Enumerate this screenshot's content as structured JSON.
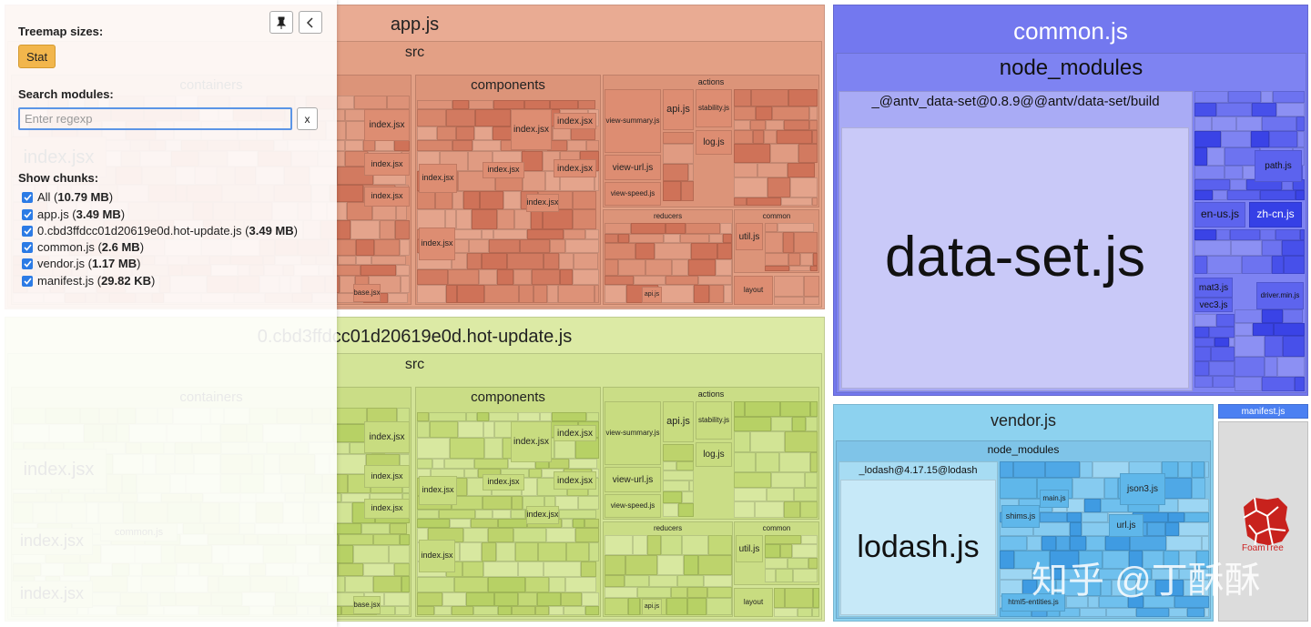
{
  "sidebar": {
    "treemap_sizes": "Treemap sizes:",
    "stat": "Stat",
    "search_modules": "Search modules:",
    "search_placeholder": "Enter regexp",
    "clear": "x",
    "show_chunks": "Show chunks:",
    "chunks": [
      {
        "parts": [
          "All (",
          "10.79 MB",
          ")"
        ]
      },
      {
        "parts": [
          "app.js (",
          "3.49 MB",
          ")"
        ]
      },
      {
        "parts": [
          "0.cbd3ffdcc01d20619e0d.hot-update.js (",
          "3.49 MB",
          ")"
        ]
      },
      {
        "parts": [
          "common.js (",
          "2.6 MB",
          ")"
        ]
      },
      {
        "parts": [
          "vendor.js (",
          "1.17 MB",
          ")"
        ]
      },
      {
        "parts": [
          "manifest.js (",
          "29.82 KB",
          ")"
        ]
      }
    ]
  },
  "treemap": {
    "chunks": [
      {
        "label": "app.js",
        "cells": [
          "src",
          "components",
          "actions",
          "reducers",
          "common",
          "layout",
          "containers",
          "index.jsx",
          "index.jsx",
          "view-summary.js",
          "api.js",
          "stability.js",
          "log.js",
          "view-url.js",
          "view-speed.js",
          "index.jsx",
          "index.jsx",
          "index.jsx",
          "index.jsx",
          "util.js",
          "index.jsx",
          "index.jsx",
          "index.jsx",
          "index.jsx",
          "index.jsx",
          "base.jsx",
          "api.js"
        ]
      },
      {
        "label": "0.cbd3ffdcc01d20619e0d.hot-update.js",
        "cells": [
          "src",
          "components",
          "actions",
          "reducers",
          "common",
          "layout",
          "containers",
          "index.jsx",
          "index.jsx",
          "view-summary.js",
          "api.js",
          "stability.js",
          "log.js",
          "view-url.js",
          "view-speed.js",
          "index.jsx",
          "index.jsx",
          "index.jsx",
          "index.jsx",
          "util.js",
          "index.jsx",
          "index.jsx",
          "index.jsx",
          "index.jsx",
          "index.jsx",
          "base.jsx",
          "api.js",
          "common.js",
          "index.jsx",
          "index.jsx"
        ]
      },
      {
        "label": "common.js",
        "cells": [
          "node_modules",
          "_@antv_data-set@0.8.9@@antv/data-set/build",
          "data-set.js",
          "en-us.js",
          "zh-cn.js",
          "path.js",
          "mat3.js",
          "vec3.js",
          "driver.min.js"
        ]
      },
      {
        "label": "vendor.js",
        "cells": [
          "node_modules",
          "_lodash@4.17.15@lodash",
          "lodash.js",
          "shims.js",
          "main.js",
          "json3.js",
          "url.js",
          "html5-entities.js"
        ]
      },
      {
        "label": "manifest.js"
      }
    ]
  },
  "watermark": {
    "text": "知乎 @丁酥酥",
    "logo": "FoamTree"
  }
}
